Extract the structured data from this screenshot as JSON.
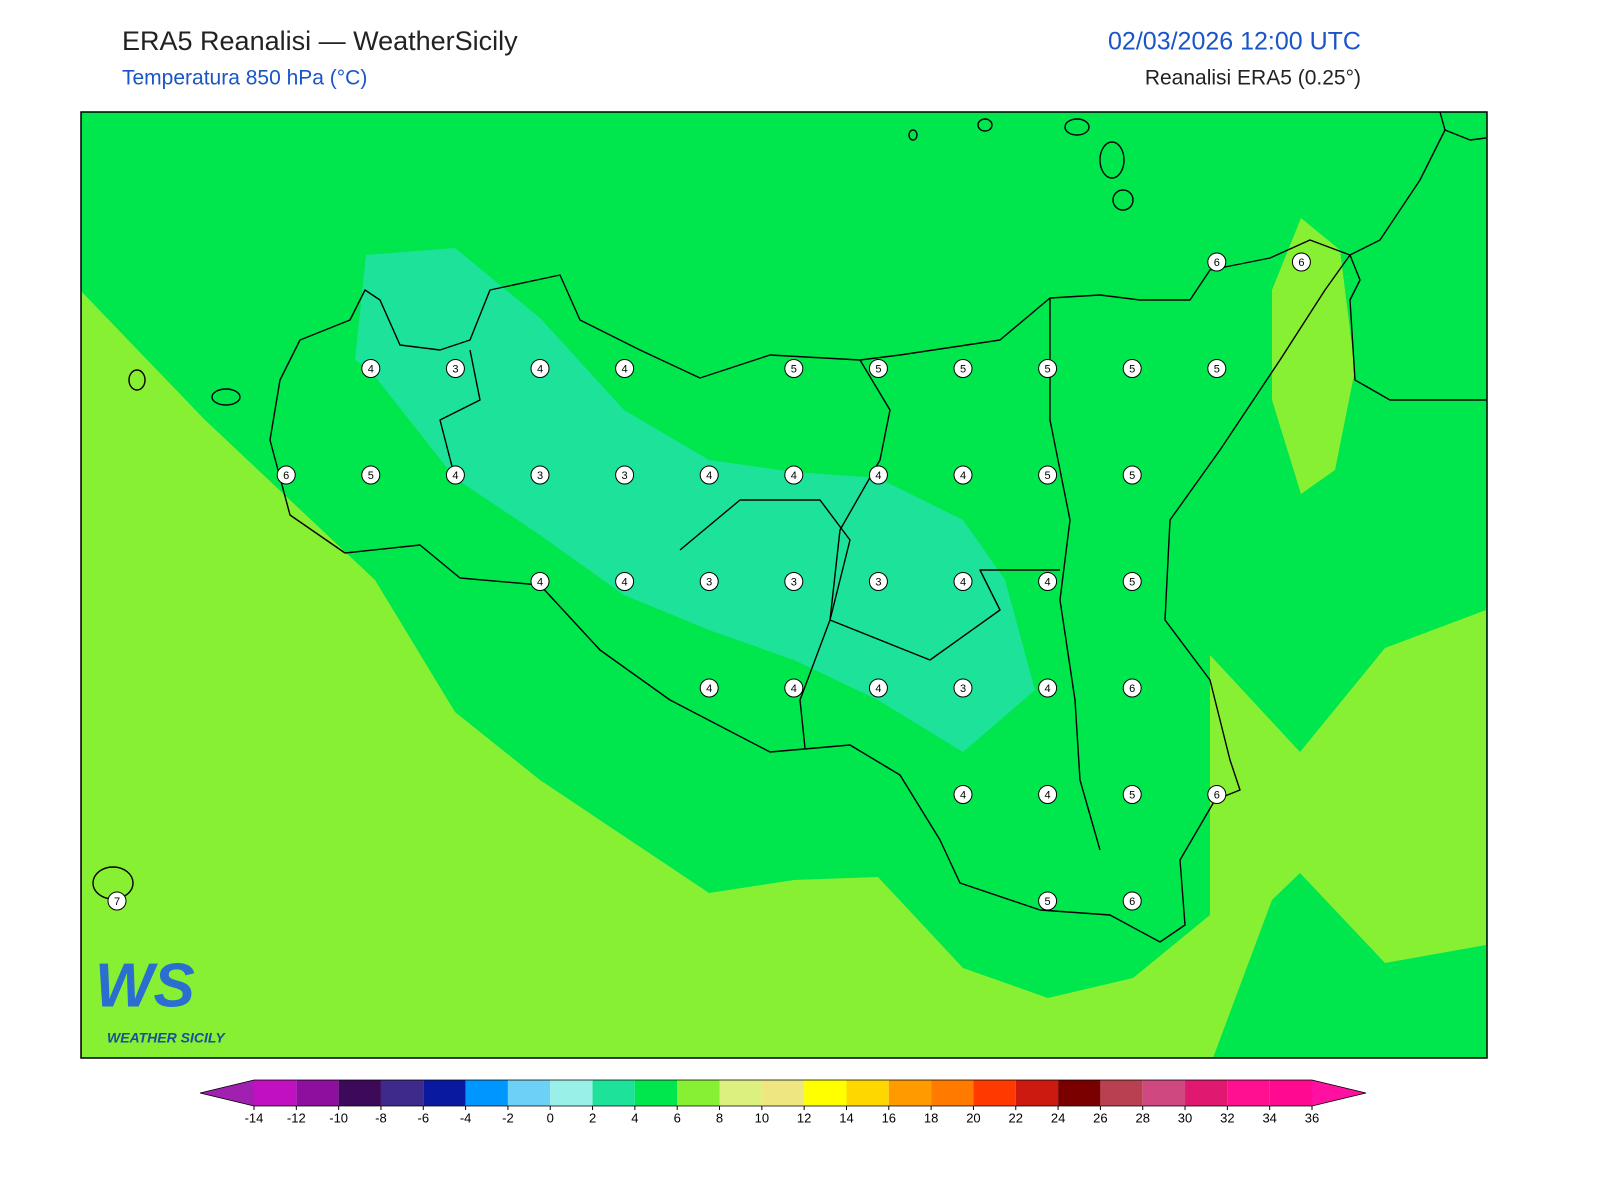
{
  "header": {
    "title": "ERA5 Reanalisi — WeatherSicily",
    "subtitle": "Temperatura 850 hPa (°C)",
    "datetime": "02/03/2026 12:00 UTC",
    "source": "Reanalisi ERA5 (0.25°)"
  },
  "grid_values": [
    [
      null,
      null,
      null,
      null,
      null,
      null,
      null,
      null,
      null,
      null,
      null,
      null,
      null,
      6,
      6
    ],
    [
      null,
      null,
      null,
      4,
      3,
      4,
      4,
      null,
      5,
      5,
      5,
      5,
      5,
      5,
      null
    ],
    [
      null,
      null,
      6,
      5,
      4,
      3,
      3,
      4,
      4,
      4,
      4,
      5,
      5,
      null,
      null
    ],
    [
      null,
      null,
      null,
      null,
      null,
      4,
      4,
      3,
      3,
      3,
      4,
      4,
      5,
      null,
      null
    ],
    [
      null,
      null,
      null,
      null,
      null,
      null,
      null,
      4,
      4,
      4,
      3,
      4,
      6,
      null,
      null
    ],
    [
      null,
      null,
      null,
      null,
      null,
      null,
      null,
      null,
      null,
      null,
      4,
      4,
      5,
      6,
      null
    ],
    [
      7,
      null,
      null,
      null,
      null,
      null,
      null,
      null,
      null,
      null,
      null,
      5,
      6,
      null,
      null
    ]
  ],
  "colorbar": {
    "ticks": [
      -14,
      -12,
      -10,
      -8,
      -6,
      -4,
      -2,
      0,
      2,
      4,
      6,
      8,
      10,
      12,
      14,
      16,
      18,
      20,
      22,
      24,
      26,
      28,
      30,
      32,
      34,
      36
    ],
    "colors": [
      "#c010c0",
      "#8e0e9e",
      "#3d0a5a",
      "#3e2a8a",
      "#0a1aa0",
      "#0096ff",
      "#6dd0f7",
      "#98f0e8",
      "#1de39a",
      "#00e64d",
      "#88f032",
      "#dcf080",
      "#eee680",
      "#ffff00",
      "#ffd700",
      "#ff9a00",
      "#ff7b00",
      "#ff3a00",
      "#cc1a10",
      "#7a0000",
      "#b84050",
      "#d04880",
      "#e01870",
      "#ff1090",
      "#ff0a90"
    ],
    "extend_colors": [
      "#a020b0",
      "#ff10a0"
    ]
  },
  "logo": {
    "mark": "WS",
    "name": "WEATHER SICILY"
  }
}
